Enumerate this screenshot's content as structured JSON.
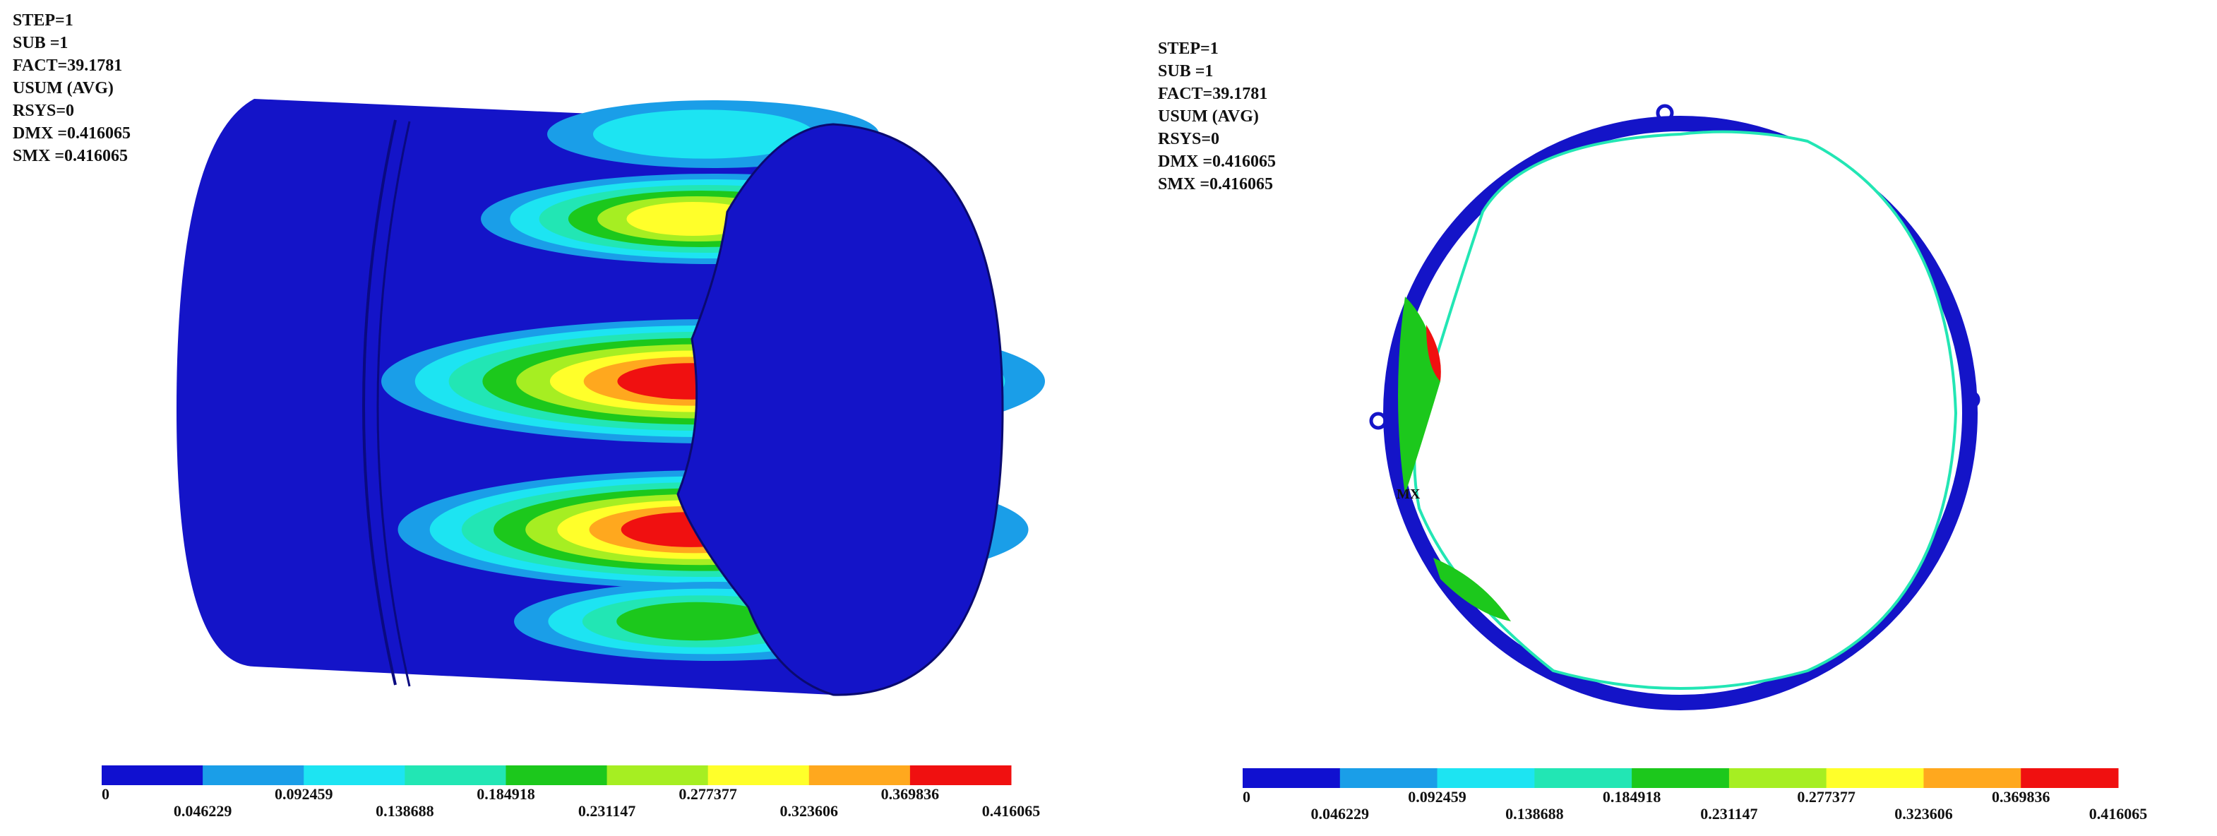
{
  "panels": [
    {
      "info": [
        "STEP=1",
        "SUB =1",
        "FACT=39.1781",
        "USUM    (AVG)",
        "RSYS=0",
        "DMX =0.416065",
        "SMX =0.416065"
      ],
      "legend": {
        "colors": [
          "#1010d0",
          "#1a9ee8",
          "#1de4f2",
          "#22e6b4",
          "#1cc81c",
          "#a6ee22",
          "#ffff2a",
          "#ffa81e",
          "#f01010"
        ],
        "labels": [
          "0",
          "0.046229",
          "0.092459",
          "0.138688",
          "0.184918",
          "0.231147",
          "0.277377",
          "0.323606",
          "0.369836",
          "0.416065"
        ]
      }
    },
    {
      "info": [
        "STEP=1",
        "SUB =1",
        "FACT=39.1781",
        "USUM    (AVG)",
        "RSYS=0",
        "DMX =0.416065",
        "SMX =0.416065"
      ],
      "legend": {
        "colors": [
          "#1010d0",
          "#1a9ee8",
          "#1de4f2",
          "#22e6b4",
          "#1cc81c",
          "#a6ee22",
          "#ffff2a",
          "#ffa81e",
          "#f01010"
        ],
        "labels": [
          "0",
          "0.046229",
          "0.092459",
          "0.138688",
          "0.184918",
          "0.231147",
          "0.277377",
          "0.323606",
          "0.369836",
          "0.416065"
        ]
      },
      "marker_label": "MX"
    }
  ]
}
